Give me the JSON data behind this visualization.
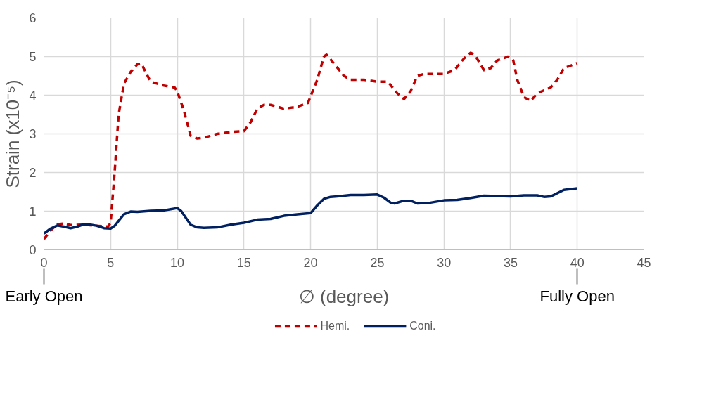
{
  "chart_data": {
    "type": "line",
    "xlabel": "∅ (degree)",
    "ylabel": "Strain (x10⁻⁵)",
    "xlim": [
      0,
      45
    ],
    "xticks": [
      0,
      5,
      10,
      15,
      20,
      25,
      30,
      35,
      40,
      45
    ],
    "ylim": [
      0,
      6
    ],
    "yticks": [
      0,
      1,
      2,
      3,
      4,
      5,
      6
    ],
    "grid": true,
    "legend": "bottom",
    "marker": "none",
    "annotations": [
      {
        "text": "Early Open",
        "x": 0
      },
      {
        "text": "Fully Open",
        "x": 40
      }
    ],
    "series": [
      {
        "name": "Hemi.",
        "color": "#c00000",
        "line_style": "dashed",
        "x": [
          0,
          0.5,
          1,
          1.5,
          2,
          3,
          4,
          4.8,
          5,
          5.3,
          5.6,
          6,
          6.5,
          7,
          7.3,
          8,
          9,
          9.8,
          10,
          10.5,
          11,
          11.5,
          12,
          13,
          14,
          15,
          15.5,
          16,
          16.5,
          17,
          18,
          19,
          19.8,
          20.5,
          21,
          21.2,
          21.8,
          22.5,
          23,
          24,
          25,
          25.8,
          26.5,
          27,
          27.5,
          28,
          28.5,
          29,
          30,
          30.8,
          31.5,
          32,
          32.3,
          33,
          33.5,
          34,
          34.8,
          35.2,
          35.5,
          36,
          36.5,
          37,
          38,
          38.5,
          39,
          40
        ],
        "values": [
          0.28,
          0.5,
          0.66,
          0.68,
          0.64,
          0.65,
          0.62,
          0.6,
          0.7,
          2.0,
          3.5,
          4.3,
          4.6,
          4.8,
          4.82,
          4.35,
          4.25,
          4.2,
          4.1,
          3.6,
          2.95,
          2.88,
          2.9,
          3.0,
          3.05,
          3.07,
          3.3,
          3.65,
          3.75,
          3.75,
          3.65,
          3.7,
          3.8,
          4.4,
          5.0,
          5.05,
          4.8,
          4.5,
          4.4,
          4.4,
          4.35,
          4.35,
          4.05,
          3.9,
          4.1,
          4.5,
          4.55,
          4.55,
          4.55,
          4.65,
          4.95,
          5.1,
          5.05,
          4.65,
          4.7,
          4.9,
          5.0,
          4.9,
          4.4,
          3.95,
          3.85,
          4.05,
          4.2,
          4.4,
          4.7,
          4.83
        ]
      },
      {
        "name": "Coni.",
        "color": "#002060",
        "line_style": "solid",
        "x": [
          0,
          0.5,
          1,
          1.5,
          2,
          2.5,
          3,
          3.5,
          4,
          4.5,
          5,
          5.3,
          6,
          6.5,
          7,
          8,
          9,
          9.5,
          10,
          10.3,
          11,
          11.5,
          12,
          13,
          14,
          15,
          16,
          17,
          18,
          19,
          20,
          20.5,
          21,
          21.5,
          22,
          23,
          24,
          25,
          25.5,
          26,
          26.3,
          27,
          27.5,
          28,
          29,
          30,
          31,
          32,
          33,
          34,
          35,
          36,
          37,
          37.5,
          38,
          39,
          40
        ],
        "values": [
          0.42,
          0.55,
          0.63,
          0.6,
          0.56,
          0.6,
          0.66,
          0.65,
          0.62,
          0.56,
          0.55,
          0.62,
          0.92,
          0.99,
          0.98,
          1.01,
          1.02,
          1.05,
          1.08,
          1.0,
          0.65,
          0.58,
          0.57,
          0.58,
          0.65,
          0.7,
          0.78,
          0.8,
          0.88,
          0.92,
          0.95,
          1.15,
          1.32,
          1.37,
          1.38,
          1.42,
          1.42,
          1.43,
          1.35,
          1.22,
          1.2,
          1.27,
          1.27,
          1.2,
          1.22,
          1.28,
          1.29,
          1.34,
          1.4,
          1.39,
          1.38,
          1.41,
          1.41,
          1.37,
          1.38,
          1.55,
          1.59
        ]
      }
    ]
  }
}
